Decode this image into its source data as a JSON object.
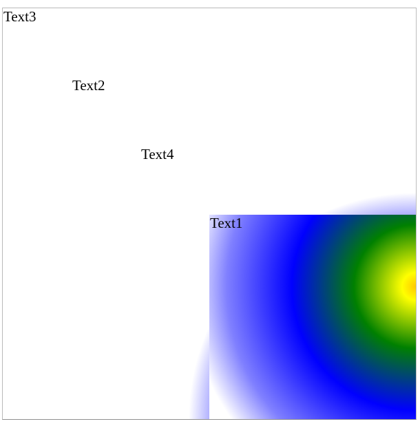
{
  "boxes": {
    "text3": {
      "label": "Text3"
    },
    "text2": {
      "label": "Text2"
    },
    "text4": {
      "label": "Text4"
    },
    "text1": {
      "label": "Text1"
    }
  },
  "colors": {
    "center": "#ffc800",
    "yellow": "#ffff00",
    "green": "#008000",
    "blue": "#0000ff",
    "light_blue": "#8080ff",
    "white": "#ffffff",
    "border": "#b9b9b9"
  }
}
